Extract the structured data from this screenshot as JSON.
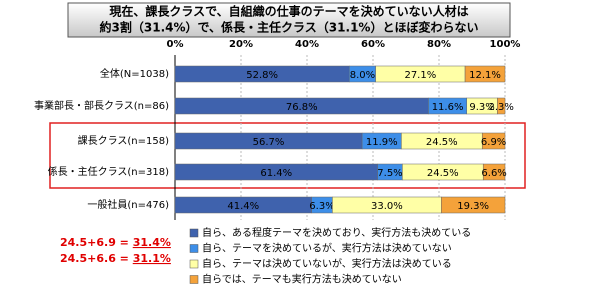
{
  "chart_data": {
    "type": "stacked-barh",
    "title": [
      "現在、課長クラスで、自組織の仕事のテーマを決めていない人材は",
      "約3割（31.4%）で、係長・主任クラス（31.1%）とほぼ変わらない"
    ],
    "categories": [
      "全体(N=1038)",
      "事業部長・部長クラス(n=86)",
      "課長クラス(n=158)",
      "係長・主任クラス(n=318)",
      "一般社員(n=476)"
    ],
    "xlim": [
      0,
      100
    ],
    "xticks": [
      {
        "value": 0,
        "label": "0%"
      },
      {
        "value": 20,
        "label": "20%"
      },
      {
        "value": 40,
        "label": "40%"
      },
      {
        "value": 60,
        "label": "60%"
      },
      {
        "value": 80,
        "label": "80%"
      },
      {
        "value": 100,
        "label": "100%"
      }
    ],
    "grid": true,
    "series": [
      {
        "name": "自ら、ある程度テーマを決めており、実行方法も決めている",
        "color": "#3f62ad",
        "label_color": "#ffffff",
        "values": [
          52.8,
          76.8,
          56.7,
          61.4,
          41.4
        ],
        "value_labels": [
          "52.8%",
          "76.8%",
          "56.7%",
          "61.4%",
          "41.4%"
        ]
      },
      {
        "name": "自ら、テーマを決めているが、実行方法は決めていない",
        "color": "#3d8ee8",
        "label_color": "#ffffff",
        "values": [
          8.0,
          11.6,
          11.9,
          7.5,
          6.3
        ],
        "value_labels": [
          "8.0%",
          "11.6%",
          "11.9%",
          "7.5%",
          "6.3%"
        ]
      },
      {
        "name": "自ら、テーマは決めていないが、実行方法は決めている",
        "color": "#ffffa6",
        "label_color": "#000000",
        "values": [
          27.1,
          9.3,
          24.5,
          24.5,
          33.0
        ],
        "value_labels": [
          "27.1%",
          "9.3%",
          "24.5%",
          "24.5%",
          "33.0%"
        ]
      },
      {
        "name": "自らでは、テーマも実行方法も決めていない",
        "color": "#f4a23a",
        "label_color": "#000000",
        "values": [
          12.1,
          2.3,
          6.9,
          6.6,
          19.3
        ],
        "value_labels": [
          "12.1%",
          "2.3%",
          "6.9%",
          "6.6%",
          "19.3%"
        ]
      }
    ],
    "annotations": [
      {
        "text": "24.5+6.9 = ",
        "result": "31.4%"
      },
      {
        "text": "24.5+6.6 = ",
        "result": "31.1%"
      }
    ]
  }
}
